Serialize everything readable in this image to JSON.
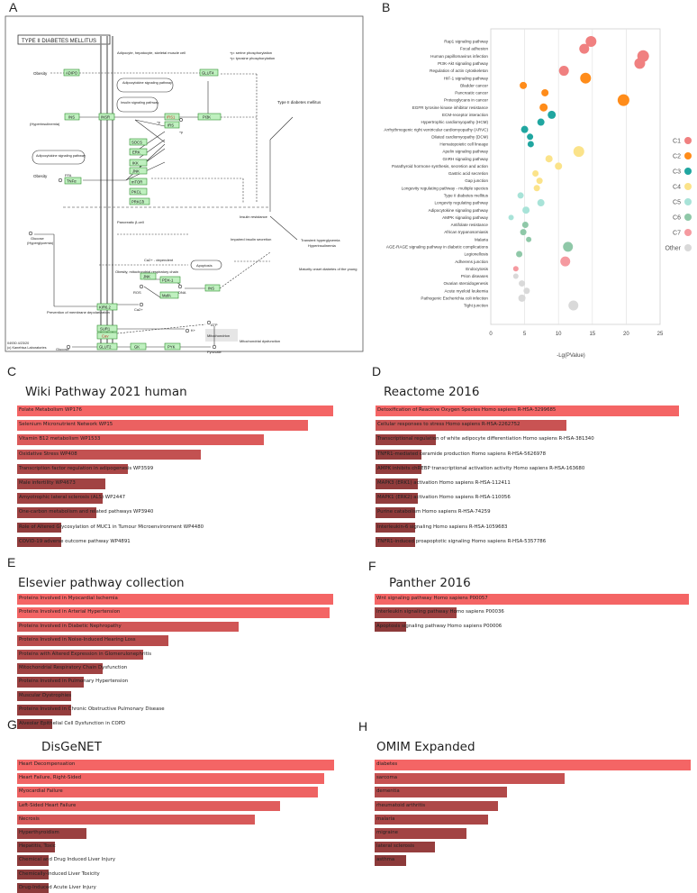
{
  "letters": {
    "a": "A",
    "b": "B",
    "c": "C",
    "d": "D",
    "e": "E",
    "f": "F",
    "g": "G",
    "h": "H"
  },
  "kegg": {
    "title": "TYPE II DIABETES MELLITUS",
    "legend1": "+p: serine phosphorylation",
    "legend2": "+p: tyrosine phosphorylation",
    "cell_adipo": "Adipocyte, hepatocyte, skeletal muscle cell",
    "beta_cell": "Pancreatic β-cell",
    "obesity1": "Obesity",
    "obesity2": "Obesity",
    "hyperins": "(Hyperinsulinemia)",
    "ffa": "FFA",
    "glucose": "Glucose",
    "hyperglyc": "(Hyperglycemia)",
    "adipo_path": "Adipocytokine signaling pathway",
    "insulin_path": "Insulin signaling pathway",
    "adipo_path2": "Adipocytokine signaling pathway",
    "t2dm": "Type II diabetes mellitus",
    "ins_res": "Insulin resistance",
    "impaired": "Impaired insulin secretion",
    "transient": "Transient hyperglycemia",
    "hyperins2": "Hyperinsulinemia",
    "mody": "Maturity onset diabetes of the young",
    "ca_dep": "Ca2+ - dependent",
    "apoptosis": "Apoptosis",
    "obesity_chain": "Obesity, mitochondrial respiratory chain",
    "ros": "ROS",
    "dna": "DNA",
    "prevention": "Prevention of membrane depolarization",
    "ca2": "Ca2+",
    "atp": "ATP",
    "kplus": "K+",
    "mito": "Mitochondrion",
    "mito_dys": "Mitochondrial dysfunction",
    "glucose2": "Glucose",
    "pyruvate": "Pyruvate",
    "footer1": "04930 4/23/20",
    "footer2": "(c) Kanehisa Laboratories",
    "plus_p1": "+p",
    "plus_p2": "+p",
    "genes": {
      "adipo": "ADIPO",
      "glut4": "GLUT4",
      "ins": "INS",
      "insr": "INSR",
      "irs1": "IRS1",
      "irs": "IRS",
      "pi3k": "PI3K",
      "socs": "SOCS",
      "erk": "ERK",
      "ikk": "IKK",
      "jnk": "JNK",
      "mtor": "mTOR",
      "pkcl": "PKCL",
      "prkcd": "PRKCδ",
      "tnfa": "TNFα",
      "jnk2": "JNK",
      "pdx1": "PDX-1",
      "mafa": "MafA",
      "ins2": "INS",
      "kir62": "KIR6.2",
      "sur1": "SUR1",
      "cav": "Cav",
      "glut2": "GLUT2",
      "gk": "GK",
      "pyk": "PYK"
    }
  },
  "dotplot": {
    "xlabel": "-Lg(PValue)",
    "xticks": [
      "0",
      "5",
      "10",
      "15",
      "20",
      "25"
    ],
    "xlim": [
      0,
      25
    ],
    "pathways": [
      "Rap1 signaling pathway",
      "Focal adhesion",
      "Human papillomavirus infection",
      "PI3K-Akt signaling pathway",
      "Regulation of actin cytoskeleton",
      "HIF-1 signaling pathway",
      "Bladder cancer",
      "Pancreatic cancer",
      "Proteoglycans in cancer",
      "EGFR tyrosine kinase inhibitor resistance",
      "ECM-receptor interaction",
      "Hypertrophic cardiomyopathy (HCM)",
      "Arrhythmogenic right ventricular cardiomyopathy (ARVC)",
      "Dilated cardiomyopathy (DCM)",
      "Hematopoietic cell lineage",
      "Apelin signaling pathway",
      "GnRH signaling pathway",
      "Parathyroid hormone synthesis, secretion and action",
      "Gastric acid secretion",
      "Gap junction",
      "Longevity regulating pathway - multiple species",
      "Type II diabetes mellitus",
      "Longevity regulating pathway",
      "Adipocytokine signaling pathway",
      "AMPK signaling pathway",
      "Antifolate resistance",
      "African trypanosomiasis",
      "Malaria",
      "AGE-RAGE signaling pathway in diabetic complications",
      "Legionellosis",
      "Adherens junction",
      "Endocytosis",
      "Prion diseases",
      "Ovarian steroidogenesis",
      "Acute myeloid leukemia",
      "Pathogenic Escherichia coli infection",
      "Tight junction"
    ],
    "points": [
      {
        "x": 14.8,
        "c": "C1",
        "s": 12
      },
      {
        "x": 13.8,
        "c": "C1",
        "s": 11
      },
      {
        "x": 22.5,
        "c": "C1",
        "s": 13
      },
      {
        "x": 22.0,
        "c": "C1",
        "s": 12
      },
      {
        "x": 10.8,
        "c": "C1",
        "s": 11
      },
      {
        "x": 14.0,
        "c": "C2",
        "s": 12
      },
      {
        "x": 4.8,
        "c": "C2",
        "s": 8
      },
      {
        "x": 8.0,
        "c": "C2",
        "s": 8
      },
      {
        "x": 19.6,
        "c": "C2",
        "s": 13
      },
      {
        "x": 7.8,
        "c": "C2",
        "s": 9
      },
      {
        "x": 9.0,
        "c": "C3",
        "s": 9
      },
      {
        "x": 7.4,
        "c": "C3",
        "s": 8
      },
      {
        "x": 5.0,
        "c": "C3",
        "s": 8
      },
      {
        "x": 5.8,
        "c": "C3",
        "s": 7
      },
      {
        "x": 5.9,
        "c": "C3",
        "s": 7
      },
      {
        "x": 13.0,
        "c": "C4",
        "s": 12
      },
      {
        "x": 8.6,
        "c": "C4",
        "s": 8
      },
      {
        "x": 10.0,
        "c": "C4",
        "s": 8
      },
      {
        "x": 6.6,
        "c": "C4",
        "s": 7
      },
      {
        "x": 7.2,
        "c": "C4",
        "s": 7
      },
      {
        "x": 6.8,
        "c": "C4",
        "s": 7
      },
      {
        "x": 4.4,
        "c": "C5",
        "s": 7
      },
      {
        "x": 7.4,
        "c": "C5",
        "s": 8
      },
      {
        "x": 5.2,
        "c": "C5",
        "s": 8
      },
      {
        "x": 3.0,
        "c": "C5",
        "s": 6
      },
      {
        "x": 5.1,
        "c": "C6",
        "s": 7
      },
      {
        "x": 4.8,
        "c": "C6",
        "s": 7
      },
      {
        "x": 5.6,
        "c": "C6",
        "s": 6
      },
      {
        "x": 11.4,
        "c": "C6",
        "s": 11
      },
      {
        "x": 4.2,
        "c": "C6",
        "s": 7
      },
      {
        "x": 11.0,
        "c": "C7",
        "s": 11
      },
      {
        "x": 3.7,
        "c": "C7",
        "s": 6
      },
      {
        "x": 3.7,
        "c": "Other",
        "s": 6
      },
      {
        "x": 4.6,
        "c": "Other",
        "s": 7
      },
      {
        "x": 5.3,
        "c": "Other",
        "s": 7
      },
      {
        "x": 4.6,
        "c": "Other",
        "s": 8
      },
      {
        "x": 12.2,
        "c": "Other",
        "s": 11
      }
    ],
    "legend": [
      {
        "label": "C1",
        "color": "#f08080"
      },
      {
        "label": "C2",
        "color": "#ff8c1a"
      },
      {
        "label": "C3",
        "color": "#20a6a0"
      },
      {
        "label": "C4",
        "color": "#fbe38a"
      },
      {
        "label": "C5",
        "color": "#a8e3d8"
      },
      {
        "label": "C6",
        "color": "#8fc8a8"
      },
      {
        "label": "C7",
        "color": "#f59aa0"
      },
      {
        "label": "Other",
        "color": "#d9d9d9"
      }
    ]
  },
  "panels": [
    {
      "key": "C",
      "title": "Wiki Pathway 2021 human",
      "items": [
        {
          "label": "Folate Metabolism WP176",
          "value": 1.0
        },
        {
          "label": "Selenium Micronutrient Network WP15",
          "value": 0.92
        },
        {
          "label": "Vitamin B12 metabolism WP1533",
          "value": 0.78
        },
        {
          "label": "Oxidative Stress WP408",
          "value": 0.58
        },
        {
          "label": "Transcription factor regulation in adipogenesis WP3599",
          "value": 0.35
        },
        {
          "label": "Male infertility WP4673",
          "value": 0.28
        },
        {
          "label": "Amyotrophic lateral sclerosis (ALS) WP2447",
          "value": 0.27
        },
        {
          "label": "One-carbon metabolism and related pathways WP3940",
          "value": 0.25
        },
        {
          "label": "Role of Altered Glycosylation of MUC1 in Tumour Microenvironment WP4480",
          "value": 0.14
        },
        {
          "label": "COVID-19 adverse outcome pathway WP4891",
          "value": 0.14
        }
      ]
    },
    {
      "key": "D",
      "title": "Reactome 2016",
      "items": [
        {
          "label": "Detoxification of Reactive Oxygen Species Homo sapiens R-HSA-3299685",
          "value": 1.0
        },
        {
          "label": "Cellular responses to stress Homo sapiens R-HSA-2262752",
          "value": 0.63
        },
        {
          "label": "Transcriptional regulation of white adipocyte differentiation Homo sapiens R-HSA-381340",
          "value": 0.2
        },
        {
          "label": "TNFR1-mediated ceramide production Homo sapiens R-HSA-5626978",
          "value": 0.15
        },
        {
          "label": "AMPK inhibits chREBP transcriptional activation activity Homo sapiens R-HSA-163680",
          "value": 0.15
        },
        {
          "label": "MAPK3 (ERK1) activation Homo sapiens R-HSA-112411",
          "value": 0.14
        },
        {
          "label": "MAPK1 (ERK2) activation Homo sapiens R-HSA-110056",
          "value": 0.14
        },
        {
          "label": "Purine catabolism Homo sapiens R-HSA-74259",
          "value": 0.13
        },
        {
          "label": "Interleukin-6 signaling Homo sapiens R-HSA-1059683",
          "value": 0.13
        },
        {
          "label": "TNFR1-induced proapoptotic signaling Homo sapiens R-HSA-5357786",
          "value": 0.13
        }
      ]
    },
    {
      "key": "E",
      "title": "Elsevier pathway collection",
      "items": [
        {
          "label": "Proteins Involved in Myocardial Ischemia",
          "value": 1.0
        },
        {
          "label": "Proteins Involved in Arterial Hypertension",
          "value": 0.99
        },
        {
          "label": "Proteins Involved in Diabetic Nephropathy",
          "value": 0.7
        },
        {
          "label": "Proteins Involved in Noise-Induced Hearing Loss",
          "value": 0.48
        },
        {
          "label": "Proteins with Altered Expression in Glomerulonephritis",
          "value": 0.4
        },
        {
          "label": "Mitochondrial Respiratory Chain Dysfunction",
          "value": 0.27
        },
        {
          "label": "Proteins Involved in Pulmonary Hypertension",
          "value": 0.21
        },
        {
          "label": "Muscular Dystrophies",
          "value": 0.17
        },
        {
          "label": "Proteins Involved in Chronic Obstructive Pulmonary Disease",
          "value": 0.17
        },
        {
          "label": "Alveolar Epithelial Cell Dysfunction in COPD",
          "value": 0.11
        }
      ]
    },
    {
      "key": "F",
      "title": "Panther 2016",
      "items": [
        {
          "label": "Wnt signaling pathway Homo sapiens P00057",
          "value": 1.0
        },
        {
          "label": "Interleukin signaling pathway Homo sapiens P00036",
          "value": 0.26
        },
        {
          "label": "Apoptosis signaling pathway Homo sapiens P00006",
          "value": 0.1
        }
      ]
    },
    {
      "key": "G",
      "title": "DisGeNET",
      "items": [
        {
          "label": "Heart Decompensation",
          "value": 1.0
        },
        {
          "label": "Heart Failure, Right-Sided",
          "value": 0.97
        },
        {
          "label": "Myocardial Failure",
          "value": 0.95
        },
        {
          "label": "Left-Sided Heart Failure",
          "value": 0.83
        },
        {
          "label": "Necrosis",
          "value": 0.75
        },
        {
          "label": "Hyperthyroidism",
          "value": 0.22
        },
        {
          "label": "Hepatitis, Toxic",
          "value": 0.12
        },
        {
          "label": "Chemical and Drug Induced Liver Injury",
          "value": 0.1
        },
        {
          "label": "Chemically-Induced Liver Toxicity",
          "value": 0.1
        },
        {
          "label": "Drug-Induced Acute Liver Injury",
          "value": 0.1
        }
      ]
    },
    {
      "key": "H",
      "title": "OMIM Expanded",
      "items": [
        {
          "label": "diabetes",
          "value": 1.0
        },
        {
          "label": "sarcoma",
          "value": 0.6
        },
        {
          "label": "dementia",
          "value": 0.42
        },
        {
          "label": "rheumatoid arthritis",
          "value": 0.39
        },
        {
          "label": "malaria",
          "value": 0.36
        },
        {
          "label": "migraine",
          "value": 0.29
        },
        {
          "label": "lateral sclerosis",
          "value": 0.19
        },
        {
          "label": "asthma",
          "value": 0.1
        }
      ]
    }
  ],
  "colors": {
    "bar_high": "#f46565",
    "bar_low": "#8c3a3a"
  }
}
